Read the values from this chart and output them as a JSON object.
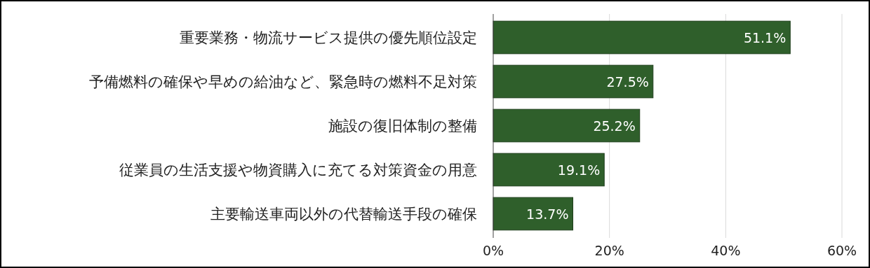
{
  "chart_data": {
    "type": "bar",
    "orientation": "horizontal",
    "categories": [
      "重要業務・物流サービス提供の優先順位設定",
      "予備燃料の確保や早めの給油など、緊急時の燃料不足対策",
      "施設の復旧体制の整備",
      "従業員の生活支援や物資購入に充てる対策資金の用意",
      "主要輸送車両以外の代替輸送手段の確保"
    ],
    "values": [
      51.1,
      27.5,
      25.2,
      19.1,
      13.7
    ],
    "value_labels": [
      "51.1%",
      "27.5%",
      "25.2%",
      "19.1%",
      "13.7%"
    ],
    "color": "#2f5f2b",
    "xlim": [
      0,
      60
    ],
    "xticks": [
      {
        "value": 0,
        "label": "0%"
      },
      {
        "value": 20,
        "label": "20%"
      },
      {
        "value": 40,
        "label": "40%"
      },
      {
        "value": 60,
        "label": "60%"
      }
    ],
    "grid": "x"
  }
}
